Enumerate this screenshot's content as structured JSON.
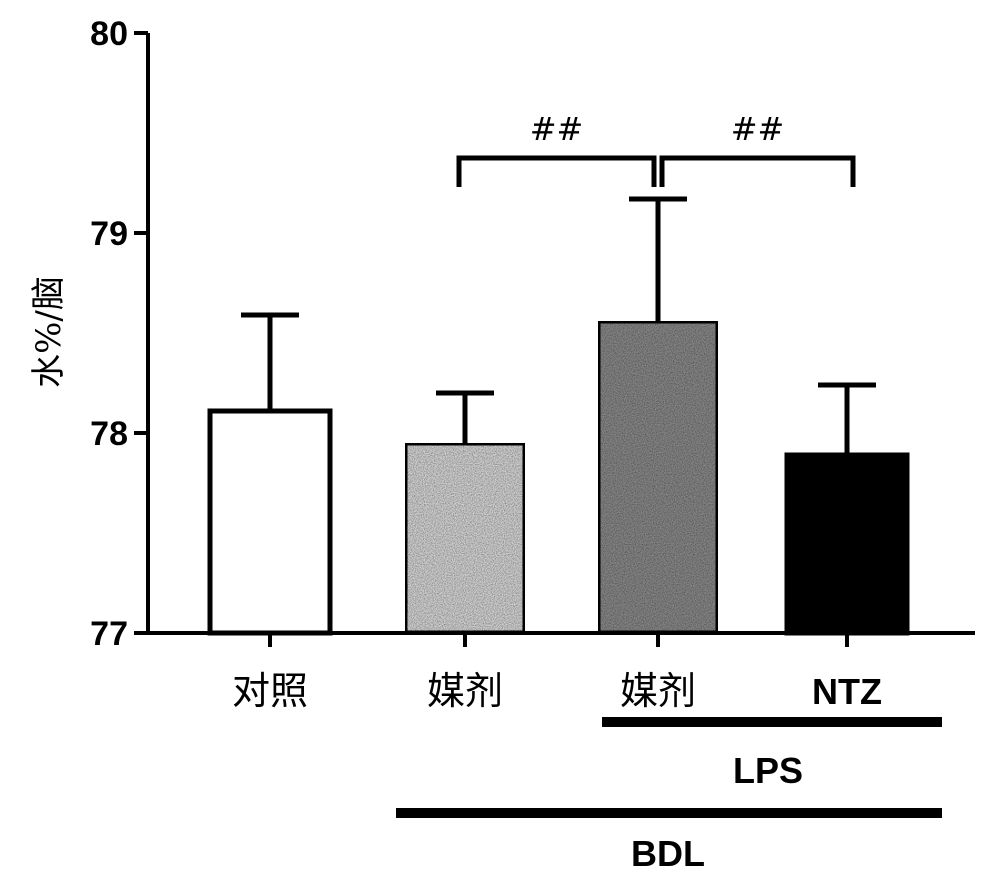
{
  "chart_data": {
    "type": "bar",
    "ylabel": "水%/脑",
    "ylim": [
      77,
      80
    ],
    "yticks": [
      77,
      78,
      79,
      80
    ],
    "categories": [
      "对照",
      "媒剂",
      "媒剂",
      "NTZ"
    ],
    "values": [
      78.11,
      77.95,
      78.56,
      77.89
    ],
    "errors": [
      0.48,
      0.25,
      0.61,
      0.35
    ],
    "bar_fills": [
      "#ffffff",
      "#d6d6d6",
      "#8a8a8a",
      "#000000"
    ],
    "significance": [
      {
        "from": 1,
        "to": 2,
        "label": "##"
      },
      {
        "from": 2,
        "to": 3,
        "label": "##"
      }
    ],
    "groups": [
      {
        "label": "LPS",
        "from": 2,
        "to": 3
      },
      {
        "label": "BDL",
        "from": 1,
        "to": 3
      }
    ]
  }
}
